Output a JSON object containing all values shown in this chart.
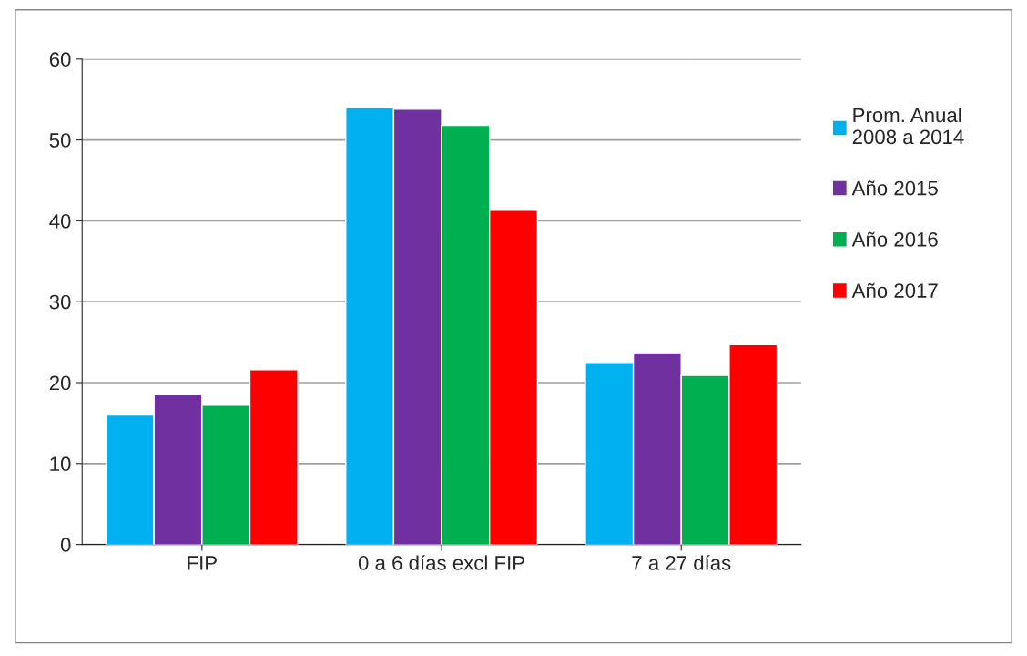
{
  "chart_data": {
    "type": "bar",
    "categories": [
      "FIP",
      "0 a 6 días excl FIP",
      "7 a 27 días"
    ],
    "series": [
      {
        "name": "Prom. Anual\n2008 a 2014",
        "color": "#00b0f0",
        "values": [
          16,
          54,
          22.5
        ]
      },
      {
        "name": "Año 2015",
        "color": "#7030a0",
        "values": [
          18.6,
          53.8,
          23.7
        ]
      },
      {
        "name": "Año 2016",
        "color": "#00b050",
        "values": [
          17.2,
          51.8,
          20.9
        ]
      },
      {
        "name": "Año 2017",
        "color": "#ff0000",
        "values": [
          21.6,
          41.3,
          24.7
        ]
      }
    ],
    "ylim": [
      0,
      60
    ],
    "yticks": [
      0,
      10,
      20,
      30,
      40,
      50,
      60
    ],
    "grid": "y",
    "legend": "right"
  }
}
